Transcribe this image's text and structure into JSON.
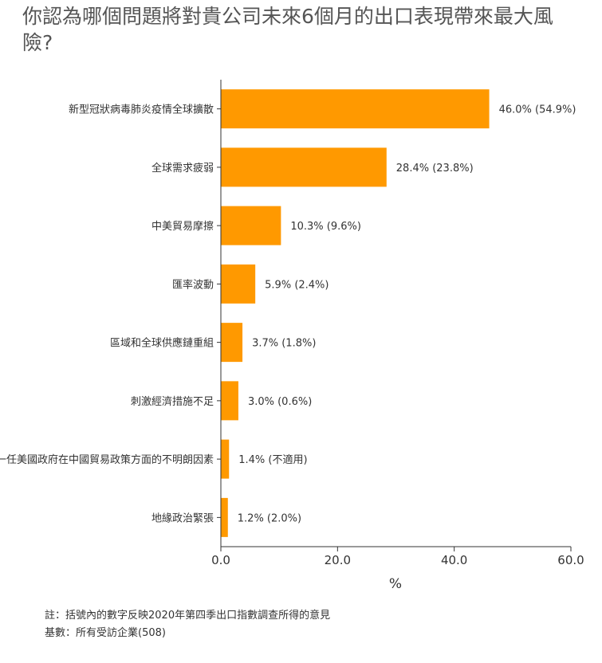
{
  "chart_data": {
    "type": "bar",
    "orientation": "horizontal",
    "title": "你認為哪個問題將對貴公司未來6個月的出口表現帶來最大風險?",
    "xlabel": "%",
    "ylabel": "",
    "xlim": [
      0,
      60
    ],
    "ticks": [
      "0.0",
      "20.0",
      "40.0",
      "60.0"
    ],
    "tick_values": [
      0,
      20,
      40,
      60
    ],
    "grid": false,
    "bar_color": "#FF9900",
    "categories": [
      "新型冠狀病毒肺炎疫情全球擴散",
      "全球需求疲弱",
      "中美貿易摩擦",
      "匯率波動",
      "區域和全球供應鏈重組",
      "刺激經濟措施不足",
      "新一任美國政府在中國貿易政策方面的不明朗因素",
      "地緣政治緊張"
    ],
    "values": [
      46.0,
      28.4,
      10.3,
      5.9,
      3.7,
      3.0,
      1.4,
      1.2
    ],
    "data_labels": [
      "46.0% (54.9%)",
      "28.4% (23.8%)",
      "10.3% (9.6%)",
      "5.9% (2.4%)",
      "3.7% (1.8%)",
      "3.0% (0.6%)",
      "1.4% (不適用)",
      "1.2% (2.0%)"
    ]
  },
  "notes": {
    "note": "註：括號內的數字反映2020年第四季出口指數調查所得的意見",
    "base": "基數：所有受訪企業(508)"
  }
}
